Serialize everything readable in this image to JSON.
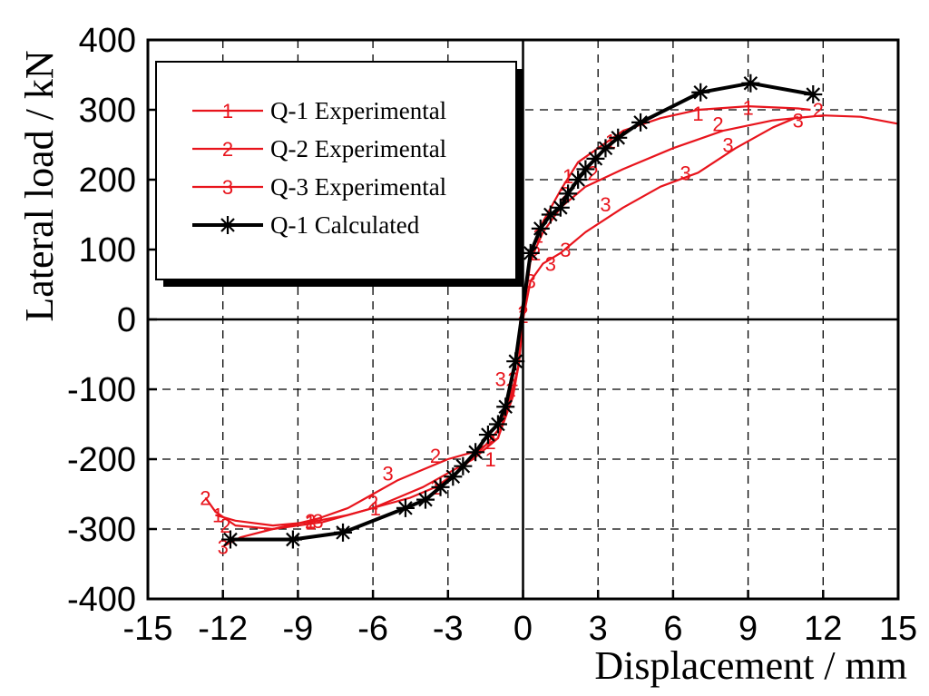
{
  "chart_data": {
    "type": "line",
    "title": "",
    "xlabel": "Displacement / mm",
    "ylabel": "Lateral load / kN",
    "xlim": [
      -15,
      15
    ],
    "ylim": [
      -400,
      400
    ],
    "xticks": [
      -15,
      -12,
      -9,
      -6,
      -3,
      0,
      3,
      6,
      9,
      12,
      15
    ],
    "yticks": [
      -400,
      -300,
      -200,
      -100,
      0,
      100,
      200,
      300,
      400
    ],
    "xtick_labels": [
      "-15",
      "-12",
      "-9",
      "-6",
      "-3",
      "0",
      "3",
      "6",
      "9",
      "12",
      "15"
    ],
    "ytick_labels": [
      "-400",
      "-300",
      "-200",
      "-100",
      "0",
      "100",
      "200",
      "300",
      "400"
    ],
    "grid": true,
    "legend_position": "top-left",
    "series": [
      {
        "name": "Q-1 Experimental",
        "color": "#e8141c",
        "marker": "1",
        "x": [
          -12.3,
          -11.5,
          -10,
          -8.5,
          -7,
          -5.5,
          -4.5,
          -3.5,
          -2.5,
          -1.5,
          -0.8,
          -0.4,
          -0.15,
          0,
          0.3,
          0.8,
          1.5,
          2.2,
          3,
          4,
          5.5,
          7,
          9,
          11,
          11.5
        ],
        "y": [
          -280,
          -288,
          -295,
          -290,
          -280,
          -265,
          -255,
          -240,
          -215,
          -180,
          -150,
          -110,
          -60,
          0,
          95,
          140,
          185,
          225,
          245,
          270,
          288,
          300,
          305,
          302,
          300
        ],
        "marker_x": [
          -12.2,
          -8.5,
          -5.9,
          -3.5,
          -1.3,
          -0.5,
          0,
          0.6,
          1.8,
          3.5,
          7,
          9
        ],
        "marker_y": [
          -280,
          -290,
          -270,
          -240,
          -200,
          -100,
          5,
          120,
          205,
          255,
          295,
          303
        ]
      },
      {
        "name": "Q-2 Experimental",
        "color": "#e8141c",
        "marker": "2",
        "x": [
          -12.7,
          -12.3,
          -11.5,
          -10,
          -9,
          -8,
          -7,
          -6,
          -5,
          -4,
          -3,
          -2,
          -1,
          -0.5,
          -0.2,
          0,
          0.3,
          0.8,
          1.5,
          2.5,
          4,
          6,
          8,
          10,
          12,
          13.5,
          15
        ],
        "y": [
          -255,
          -275,
          -295,
          -300,
          -295,
          -290,
          -280,
          -270,
          -255,
          -240,
          -220,
          -200,
          -170,
          -120,
          -70,
          0,
          85,
          125,
          160,
          190,
          215,
          245,
          270,
          285,
          292,
          290,
          280
        ],
        "marker_x": [
          -12.7,
          -11.9,
          -8.5,
          -6,
          -3.5,
          -1.3,
          -0.4,
          0,
          0.5,
          1.7,
          2.8,
          7.8,
          11.8
        ],
        "marker_y": [
          -255,
          -295,
          -288,
          -262,
          -195,
          -175,
          -85,
          10,
          95,
          180,
          210,
          280,
          300
        ]
      },
      {
        "name": "Q-3 Experimental",
        "color": "#e8141c",
        "marker": "3",
        "x": [
          -12,
          -11.3,
          -10,
          -9,
          -8.2,
          -7,
          -6,
          -5,
          -4,
          -3,
          -2,
          -1,
          -0.5,
          -0.2,
          0,
          0.3,
          0.8,
          1.5,
          2.5,
          4,
          5.5,
          7,
          8.5,
          10,
          11
        ],
        "y": [
          -325,
          -312,
          -300,
          -292,
          -285,
          -270,
          -250,
          -230,
          -215,
          -200,
          -190,
          -170,
          -110,
          -70,
          0,
          55,
          80,
          95,
          125,
          160,
          190,
          210,
          245,
          275,
          290
        ],
        "marker_x": [
          -12,
          -8.2,
          -5.4,
          -0.9,
          0.3,
          1.1,
          1.7,
          3.3,
          6.5,
          8.2,
          11
        ],
        "marker_y": [
          -325,
          -288,
          -220,
          -85,
          55,
          80,
          100,
          165,
          210,
          250,
          285
        ]
      },
      {
        "name": "Q-1 Calculated",
        "color": "#000000",
        "marker": "asterisk",
        "x": [
          -11.7,
          -9.2,
          -7.2,
          -4.7,
          -3.9,
          -3.3,
          -2.8,
          -2.4,
          -1.9,
          -1.4,
          -1,
          -0.7,
          -0.3,
          0.3,
          0.7,
          1.1,
          1.5,
          1.8,
          2.2,
          2.5,
          2.9,
          3.3,
          3.8,
          4.7,
          7.1,
          9.1,
          11.6
        ],
        "y": [
          -315,
          -315,
          -305,
          -270,
          -258,
          -240,
          -225,
          -210,
          -190,
          -165,
          -150,
          -125,
          -60,
          95,
          130,
          150,
          160,
          180,
          200,
          215,
          230,
          245,
          260,
          282,
          325,
          338,
          322
        ]
      }
    ]
  }
}
